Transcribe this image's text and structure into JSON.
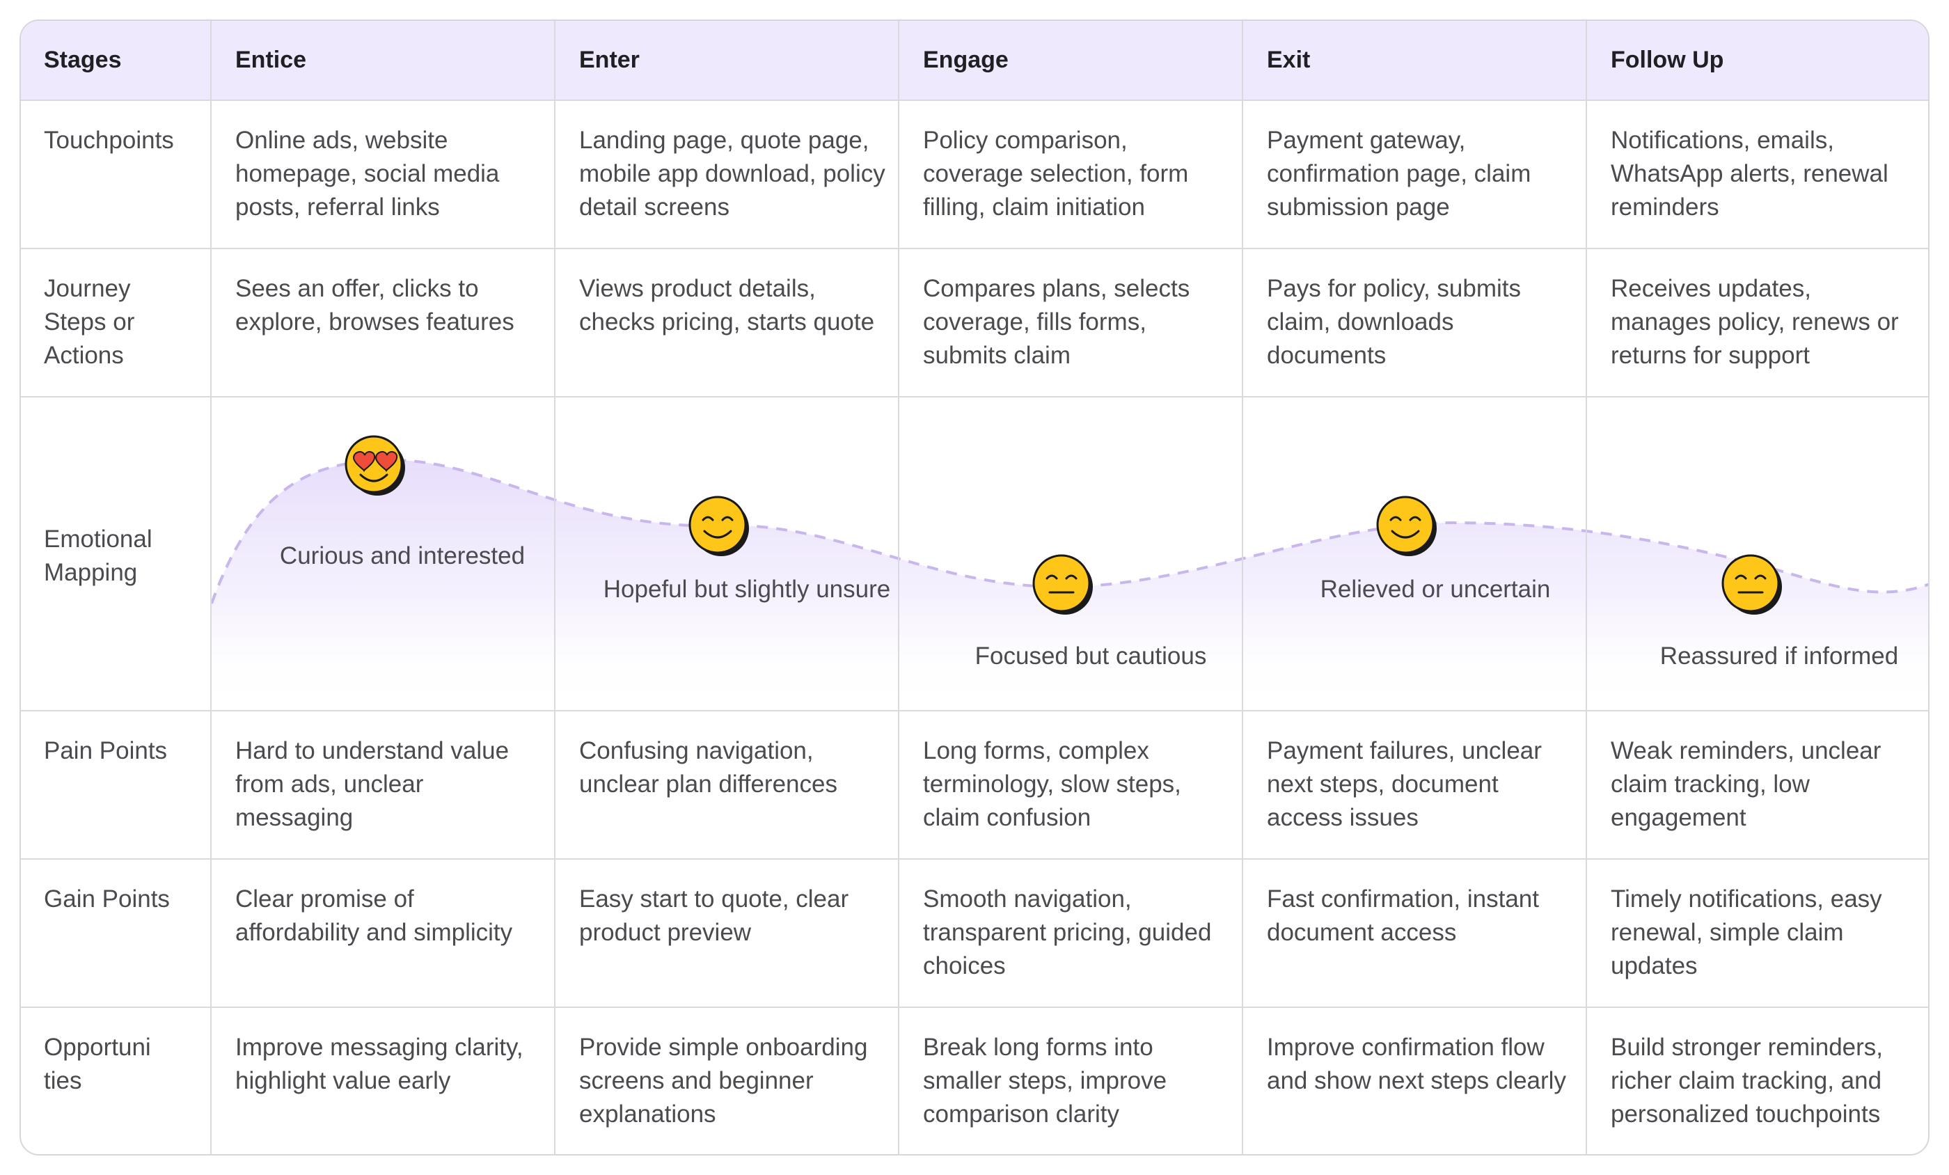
{
  "stages": {
    "header_label": "Stages",
    "columns": [
      "Entice",
      "Enter",
      "Engage",
      "Exit",
      "Follow Up"
    ]
  },
  "rows": {
    "touchpoints": {
      "label": "Touchpoints",
      "cells": [
        "Online ads, website homepage, social media posts, referral links",
        "Landing page, quote page, mobile app download, policy detail screens",
        "Policy comparison, coverage selection, form filling, claim initiation",
        "Payment gateway, confirmation page, claim submission page",
        "Notifications, emails, WhatsApp alerts, renewal reminders"
      ]
    },
    "journey_steps": {
      "label": "Journey Steps or Actions",
      "cells": [
        "Sees an offer, clicks to explore, browses features",
        "Views product details, checks pricing, starts quote",
        "Compares plans, selects coverage, fills forms, submits claim",
        "Pays for policy, submits claim, downloads documents",
        "Receives updates, manages policy, renews or returns for support"
      ]
    },
    "emotional_mapping": {
      "label": "Emotional Mapping",
      "emotions": [
        {
          "label": "Curious and interested",
          "emoji": "heart-eyes-face-icon"
        },
        {
          "label": "Hopeful but slightly unsure",
          "emoji": "smiling-face-icon"
        },
        {
          "label": "Focused but cautious",
          "emoji": "neutral-face-icon"
        },
        {
          "label": "Relieved or uncertain",
          "emoji": "smiling-face-icon"
        },
        {
          "label": "Reassured if informed",
          "emoji": "neutral-face-icon"
        }
      ]
    },
    "pain_points": {
      "label": "Pain Points",
      "cells": [
        "Hard to understand value from ads, unclear messaging",
        "Confusing navigation, unclear plan differences",
        "Long forms, complex terminology, slow steps, claim confusion",
        "Payment failures, unclear next steps, document access issues",
        "Weak reminders, unclear claim tracking, low engagement"
      ]
    },
    "gain_points": {
      "label": "Gain Points",
      "cells": [
        "Clear promise of affordability and simplicity",
        "Easy start to quote, clear product preview",
        "Smooth navigation, transparent pricing, guided choices",
        "Fast confirmation, instant document access",
        "Timely notifications, easy renewal, simple claim updates"
      ]
    },
    "opportunities": {
      "label": "Opportuni ties",
      "cells": [
        "Improve messaging clarity, highlight value early",
        "Provide simple onboarding screens and beginner explanations",
        "Break long forms into smaller steps, improve comparison clarity",
        "Improve confirmation flow and show next steps clearly",
        "Build stronger reminders, richer claim tracking, and personalized touchpoints"
      ]
    }
  },
  "colors": {
    "header_bg": "#efe9fd",
    "grid": "#d9d9de",
    "curve": "#c8b6ec",
    "emoji_yellow": "#ffc61a"
  }
}
